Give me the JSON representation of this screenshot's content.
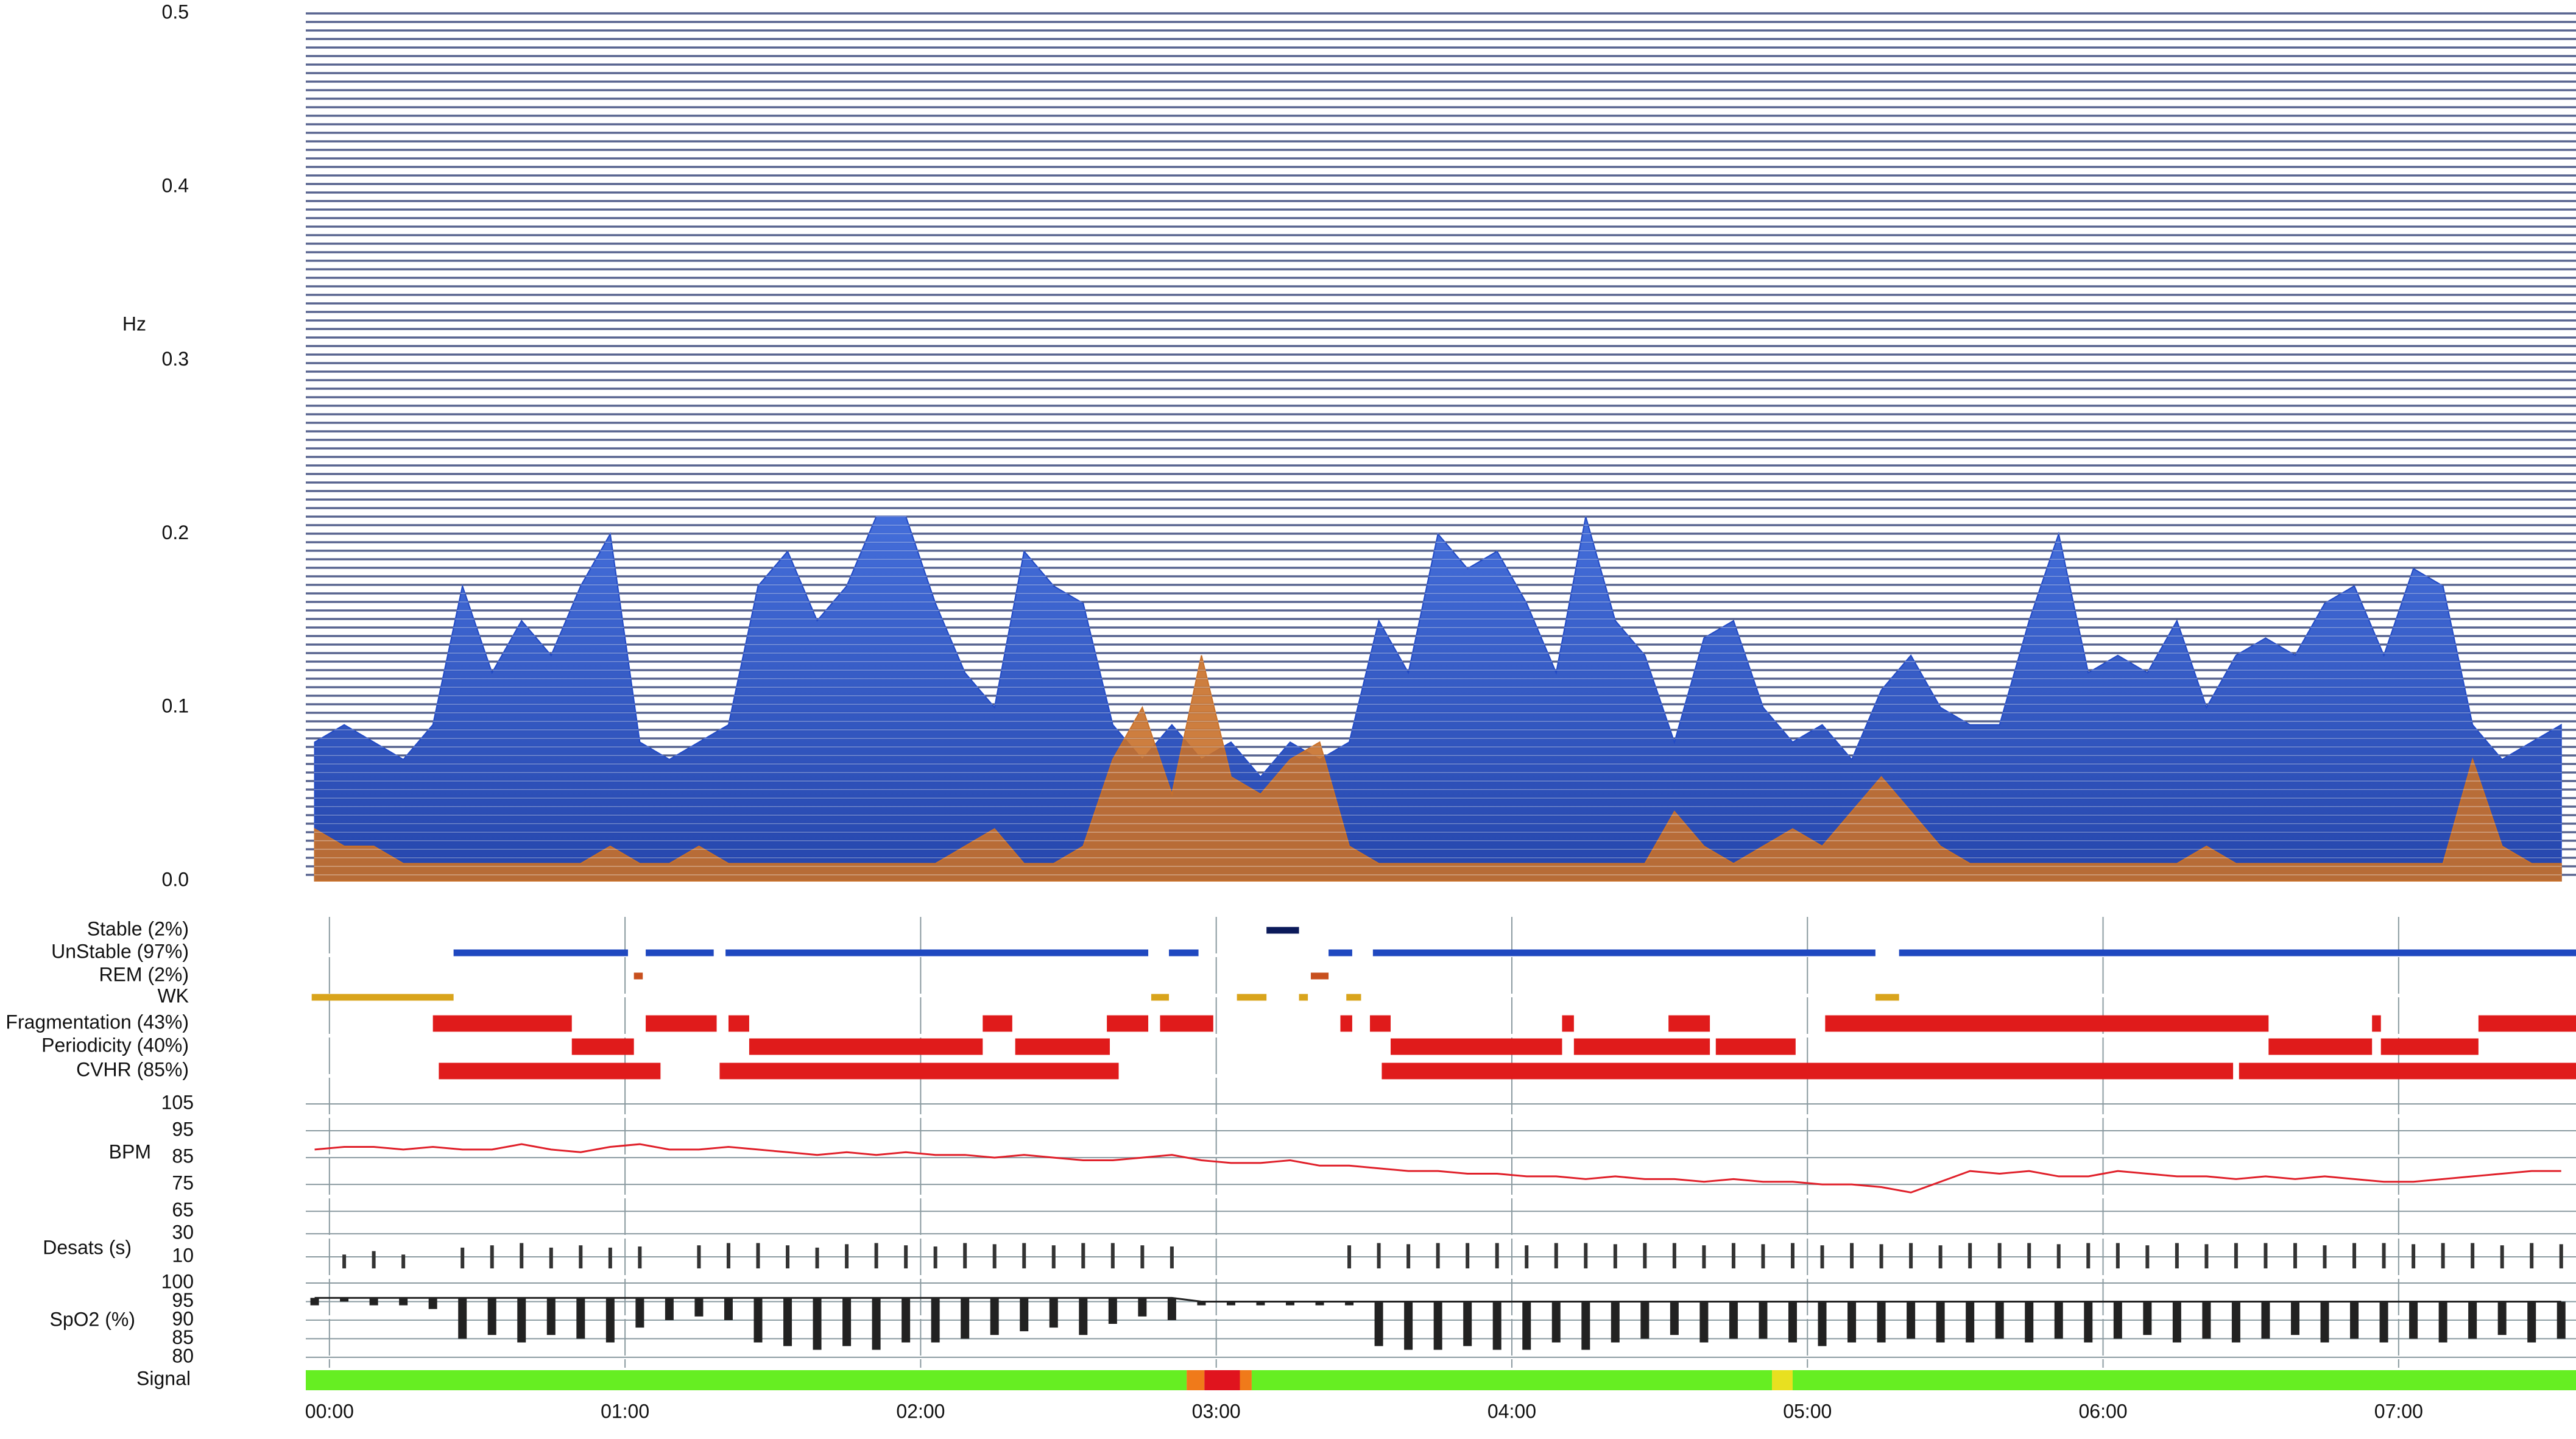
{
  "chart_data": [
    {
      "type": "area",
      "y_label": "Hz",
      "xlim": [
        -0.08,
        7.6
      ],
      "ylim": [
        0,
        0.5
      ],
      "yticks": [
        {
          "value": 0,
          "label": "0.0"
        },
        {
          "value": 0.1,
          "label": "0.1"
        },
        {
          "value": 0.2,
          "label": "0.2"
        },
        {
          "value": 0.3,
          "label": "0.3"
        },
        {
          "value": 0.4,
          "label": "0.4"
        },
        {
          "value": 0.5,
          "label": "0.5"
        }
      ],
      "x": [
        -0.05,
        0.05,
        0.15,
        0.25,
        0.35,
        0.45,
        0.55,
        0.65,
        0.75,
        0.85,
        0.95,
        1.05,
        1.15,
        1.25,
        1.35,
        1.45,
        1.55,
        1.65,
        1.75,
        1.85,
        1.95,
        2.05,
        2.15,
        2.25,
        2.35,
        2.45,
        2.55,
        2.65,
        2.75,
        2.85,
        2.95,
        3.05,
        3.15,
        3.25,
        3.35,
        3.45,
        3.55,
        3.65,
        3.75,
        3.85,
        3.95,
        4.05,
        4.15,
        4.25,
        4.35,
        4.45,
        4.55,
        4.65,
        4.75,
        4.85,
        4.95,
        5.05,
        5.15,
        5.25,
        5.35,
        5.45,
        5.55,
        5.65,
        5.75,
        5.85,
        5.95,
        6.05,
        6.15,
        6.25,
        6.35,
        6.45,
        6.55,
        6.65,
        6.75,
        6.85,
        6.95,
        7.05,
        7.15,
        7.25,
        7.35,
        7.45,
        7.55
      ],
      "series": [
        {
          "color": "#2149c4",
          "values": [
            0.08,
            0.09,
            0.08,
            0.07,
            0.09,
            0.17,
            0.12,
            0.15,
            0.13,
            0.17,
            0.2,
            0.08,
            0.07,
            0.08,
            0.09,
            0.17,
            0.19,
            0.15,
            0.17,
            0.21,
            0.21,
            0.16,
            0.12,
            0.1,
            0.19,
            0.17,
            0.16,
            0.09,
            0.07,
            0.09,
            0.07,
            0.08,
            0.06,
            0.08,
            0.07,
            0.08,
            0.15,
            0.12,
            0.2,
            0.18,
            0.19,
            0.16,
            0.12,
            0.21,
            0.15,
            0.13,
            0.08,
            0.14,
            0.15,
            0.1,
            0.08,
            0.09,
            0.07,
            0.11,
            0.13,
            0.1,
            0.09,
            0.09,
            0.15,
            0.2,
            0.12,
            0.13,
            0.12,
            0.15,
            0.1,
            0.13,
            0.14,
            0.13,
            0.16,
            0.17,
            0.13,
            0.18,
            0.17,
            0.09,
            0.07,
            0.08,
            0.09
          ]
        },
        {
          "color": "#c8702a",
          "values": [
            0.03,
            0.02,
            0.02,
            0.01,
            0.01,
            0.01,
            0.01,
            0.01,
            0.01,
            0.01,
            0.02,
            0.01,
            0.01,
            0.02,
            0.01,
            0.01,
            0.01,
            0.01,
            0.01,
            0.01,
            0.01,
            0.01,
            0.02,
            0.03,
            0.01,
            0.01,
            0.02,
            0.07,
            0.1,
            0.05,
            0.13,
            0.06,
            0.05,
            0.07,
            0.08,
            0.02,
            0.01,
            0.01,
            0.01,
            0.01,
            0.01,
            0.01,
            0.01,
            0.01,
            0.01,
            0.01,
            0.04,
            0.02,
            0.01,
            0.02,
            0.03,
            0.02,
            0.04,
            0.06,
            0.04,
            0.02,
            0.01,
            0.01,
            0.01,
            0.01,
            0.01,
            0.01,
            0.01,
            0.01,
            0.02,
            0.01,
            0.01,
            0.01,
            0.01,
            0.01,
            0.01,
            0.01,
            0.01,
            0.07,
            0.02,
            0.01,
            0.01
          ]
        }
      ]
    },
    {
      "type": "timeline",
      "xlim": [
        -0.08,
        7.6
      ],
      "rows": [
        {
          "name": "Stable (2%)",
          "color": "#0b1a5a",
          "label_color": "#0b1a5a",
          "segments": [
            [
              3.17,
              3.28
            ]
          ]
        },
        {
          "name": "UnStable (97%)",
          "color": "#1f48c0",
          "label_color": "#1f48c0",
          "segments": [
            [
              0.42,
              1.01
            ],
            [
              1.07,
              1.3
            ],
            [
              1.34,
              2.77
            ],
            [
              2.84,
              2.94
            ],
            [
              3.38,
              3.46
            ],
            [
              3.53,
              5.23
            ],
            [
              5.31,
              7.6
            ]
          ]
        },
        {
          "name": "REM (2%)",
          "color": "#c8501e",
          "label_color": "#c8501e",
          "segments": [
            [
              1.03,
              1.06
            ],
            [
              3.32,
              3.38
            ]
          ]
        },
        {
          "name": "WK",
          "color": "#d9a41c",
          "label_color": "#d9a41c",
          "segments": [
            [
              -0.06,
              0.42
            ],
            [
              2.78,
              2.84
            ],
            [
              3.07,
              3.17
            ],
            [
              3.28,
              3.31
            ],
            [
              3.44,
              3.49
            ],
            [
              5.23,
              5.31
            ]
          ]
        },
        {
          "name": "Fragmentation (43%)",
          "color": "#e01b1b",
          "label_color": "#111111",
          "segments": [
            [
              0.35,
              0.82
            ],
            [
              1.07,
              1.31
            ],
            [
              1.35,
              1.42
            ],
            [
              2.21,
              2.31
            ],
            [
              2.63,
              2.77
            ],
            [
              2.81,
              2.99
            ],
            [
              3.42,
              3.46
            ],
            [
              3.52,
              3.59
            ],
            [
              4.17,
              4.21
            ],
            [
              4.53,
              4.67
            ],
            [
              5.06,
              6.56
            ],
            [
              6.91,
              6.94
            ],
            [
              7.27,
              7.6
            ]
          ]
        },
        {
          "name": "Periodicity (40%)",
          "color": "#e01b1b",
          "label_color": "#111111",
          "segments": [
            [
              0.82,
              1.03
            ],
            [
              1.42,
              2.21
            ],
            [
              2.32,
              2.64
            ],
            [
              3.59,
              4.17
            ],
            [
              4.21,
              4.67
            ],
            [
              4.69,
              4.96
            ],
            [
              6.56,
              6.91
            ],
            [
              6.94,
              7.27
            ]
          ]
        },
        {
          "name": "CVHR (85%)",
          "color": "#e01b1b",
          "label_color": "#111111",
          "segments": [
            [
              0.37,
              1.12
            ],
            [
              1.32,
              2.67
            ],
            [
              3.56,
              6.44
            ],
            [
              6.46,
              7.6
            ]
          ]
        }
      ]
    },
    {
      "type": "line",
      "y_label": "BPM",
      "color": "#e0202a",
      "xlim": [
        -0.08,
        7.6
      ],
      "ylim": [
        63,
        105
      ],
      "yticks": [
        65,
        75,
        85,
        95,
        105
      ],
      "x": [
        -0.05,
        0.05,
        0.15,
        0.25,
        0.35,
        0.45,
        0.55,
        0.65,
        0.75,
        0.85,
        0.95,
        1.05,
        1.15,
        1.25,
        1.35,
        1.45,
        1.55,
        1.65,
        1.75,
        1.85,
        1.95,
        2.05,
        2.15,
        2.25,
        2.35,
        2.45,
        2.55,
        2.65,
        2.75,
        2.85,
        2.95,
        3.05,
        3.15,
        3.25,
        3.35,
        3.45,
        3.55,
        3.65,
        3.75,
        3.85,
        3.95,
        4.05,
        4.15,
        4.25,
        4.35,
        4.45,
        4.55,
        4.65,
        4.75,
        4.85,
        4.95,
        5.05,
        5.15,
        5.25,
        5.35,
        5.45,
        5.55,
        5.65,
        5.75,
        5.85,
        5.95,
        6.05,
        6.15,
        6.25,
        6.35,
        6.45,
        6.55,
        6.65,
        6.75,
        6.85,
        6.95,
        7.05,
        7.15,
        7.25,
        7.35,
        7.45,
        7.55
      ],
      "values": [
        88,
        89,
        89,
        88,
        89,
        88,
        88,
        90,
        88,
        87,
        89,
        90,
        88,
        88,
        89,
        88,
        87,
        86,
        87,
        86,
        87,
        86,
        86,
        85,
        86,
        85,
        84,
        84,
        85,
        86,
        84,
        83,
        83,
        84,
        82,
        82,
        81,
        80,
        80,
        79,
        79,
        78,
        78,
        77,
        78,
        77,
        77,
        76,
        77,
        76,
        76,
        75,
        75,
        74,
        72,
        76,
        80,
        79,
        80,
        78,
        78,
        80,
        79,
        78,
        78,
        77,
        78,
        77,
        78,
        77,
        76,
        76,
        77,
        78,
        79,
        80,
        80
      ]
    },
    {
      "type": "bar",
      "y_label": "Desats (s)",
      "color": "#333333",
      "xlim": [
        -0.08,
        7.6
      ],
      "ylim": [
        0,
        38
      ],
      "yticks": [
        10,
        30
      ],
      "x": [
        -0.05,
        0.05,
        0.15,
        0.25,
        0.35,
        0.45,
        0.55,
        0.65,
        0.75,
        0.85,
        0.95,
        1.05,
        1.15,
        1.25,
        1.35,
        1.45,
        1.55,
        1.65,
        1.75,
        1.85,
        1.95,
        2.05,
        2.15,
        2.25,
        2.35,
        2.45,
        2.55,
        2.65,
        2.75,
        2.85,
        2.95,
        3.05,
        3.15,
        3.25,
        3.35,
        3.45,
        3.55,
        3.65,
        3.75,
        3.85,
        3.95,
        4.05,
        4.15,
        4.25,
        4.35,
        4.45,
        4.55,
        4.65,
        4.75,
        4.85,
        4.95,
        5.05,
        5.15,
        5.25,
        5.35,
        5.45,
        5.55,
        5.65,
        5.75,
        5.85,
        5.95,
        6.05,
        6.15,
        6.25,
        6.35,
        6.45,
        6.55,
        6.65,
        6.75,
        6.85,
        6.95,
        7.05,
        7.15,
        7.25,
        7.35,
        7.45,
        7.55
      ],
      "values": [
        null,
        12,
        15,
        12,
        null,
        18,
        20,
        22,
        18,
        20,
        18,
        19,
        null,
        20,
        22,
        22,
        20,
        18,
        21,
        22,
        20,
        19,
        22,
        21,
        22,
        20,
        22,
        22,
        20,
        19,
        null,
        null,
        null,
        null,
        null,
        20,
        22,
        21,
        22,
        22,
        22,
        20,
        22,
        22,
        21,
        22,
        22,
        20,
        22,
        21,
        22,
        20,
        22,
        21,
        22,
        20,
        22,
        22,
        22,
        21,
        22,
        22,
        20,
        22,
        21,
        22,
        22,
        22,
        20,
        22,
        22,
        21,
        22,
        22,
        20,
        22,
        21
      ]
    },
    {
      "type": "range",
      "y_label": "SpO2 (%)",
      "color": "#222222",
      "xlim": [
        -0.08,
        7.6
      ],
      "ylim": [
        78,
        100
      ],
      "yticks": [
        80,
        85,
        90,
        95,
        100
      ],
      "x": [
        -0.05,
        0.05,
        0.15,
        0.25,
        0.35,
        0.45,
        0.55,
        0.65,
        0.75,
        0.85,
        0.95,
        1.05,
        1.15,
        1.25,
        1.35,
        1.45,
        1.55,
        1.65,
        1.75,
        1.85,
        1.95,
        2.05,
        2.15,
        2.25,
        2.35,
        2.45,
        2.55,
        2.65,
        2.75,
        2.85,
        2.95,
        3.05,
        3.15,
        3.25,
        3.35,
        3.45,
        3.55,
        3.65,
        3.75,
        3.85,
        3.95,
        4.05,
        4.15,
        4.25,
        4.35,
        4.45,
        4.55,
        4.65,
        4.75,
        4.85,
        4.95,
        5.05,
        5.15,
        5.25,
        5.35,
        5.45,
        5.55,
        5.65,
        5.75,
        5.85,
        5.95,
        6.05,
        6.15,
        6.25,
        6.35,
        6.45,
        6.55,
        6.65,
        6.75,
        6.85,
        6.95,
        7.05,
        7.15,
        7.25,
        7.35,
        7.45,
        7.55
      ],
      "values": [
        96,
        96,
        96,
        96,
        96,
        96,
        96,
        96,
        96,
        96,
        96,
        96,
        96,
        96,
        96,
        96,
        96,
        96,
        96,
        96,
        96,
        96,
        96,
        96,
        96,
        96,
        96,
        96,
        96,
        96,
        95,
        95,
        95,
        95,
        95,
        95,
        95,
        95,
        95,
        95,
        95,
        95,
        95,
        95,
        95,
        95,
        95,
        95,
        95,
        95,
        95,
        95,
        95,
        95,
        95,
        95,
        95,
        95,
        95,
        95,
        95,
        95,
        95,
        95,
        95,
        95,
        95,
        95,
        95,
        95,
        95,
        95,
        95,
        95,
        95,
        95,
        95
      ],
      "min_values": [
        94,
        95,
        94,
        94,
        93,
        85,
        86,
        84,
        86,
        85,
        84,
        88,
        90,
        91,
        90,
        84,
        83,
        82,
        83,
        82,
        84,
        84,
        85,
        86,
        87,
        88,
        86,
        89,
        91,
        90,
        94,
        94,
        94,
        94,
        94,
        94,
        83,
        82,
        82,
        83,
        82,
        82,
        84,
        82,
        84,
        85,
        86,
        84,
        85,
        85,
        84,
        83,
        84,
        84,
        85,
        84,
        84,
        85,
        84,
        85,
        84,
        85,
        86,
        84,
        85,
        84,
        85,
        86,
        84,
        85,
        84,
        85,
        84,
        85,
        86,
        84,
        85
      ]
    },
    {
      "type": "segments",
      "y_label": "Signal",
      "xlim": [
        -0.08,
        7.6
      ],
      "segments": [
        {
          "start": -0.08,
          "end": 2.9,
          "color": "#66ee22"
        },
        {
          "start": 2.9,
          "end": 2.96,
          "color": "#f07a1a"
        },
        {
          "start": 2.96,
          "end": 3.08,
          "color": "#e0141e"
        },
        {
          "start": 3.08,
          "end": 3.12,
          "color": "#f07a1a"
        },
        {
          "start": 3.12,
          "end": 4.88,
          "color": "#66ee22"
        },
        {
          "start": 4.88,
          "end": 4.95,
          "color": "#e8e020"
        },
        {
          "start": 4.95,
          "end": 7.6,
          "color": "#66ee22"
        }
      ],
      "xticks": [
        {
          "value": 0,
          "label": "00:00"
        },
        {
          "value": 1,
          "label": "01:00"
        },
        {
          "value": 2,
          "label": "02:00"
        },
        {
          "value": 3,
          "label": "03:00"
        },
        {
          "value": 4,
          "label": "04:00"
        },
        {
          "value": 5,
          "label": "05:00"
        },
        {
          "value": 6,
          "label": "06:00"
        },
        {
          "value": 7,
          "label": "07:00"
        }
      ]
    }
  ]
}
